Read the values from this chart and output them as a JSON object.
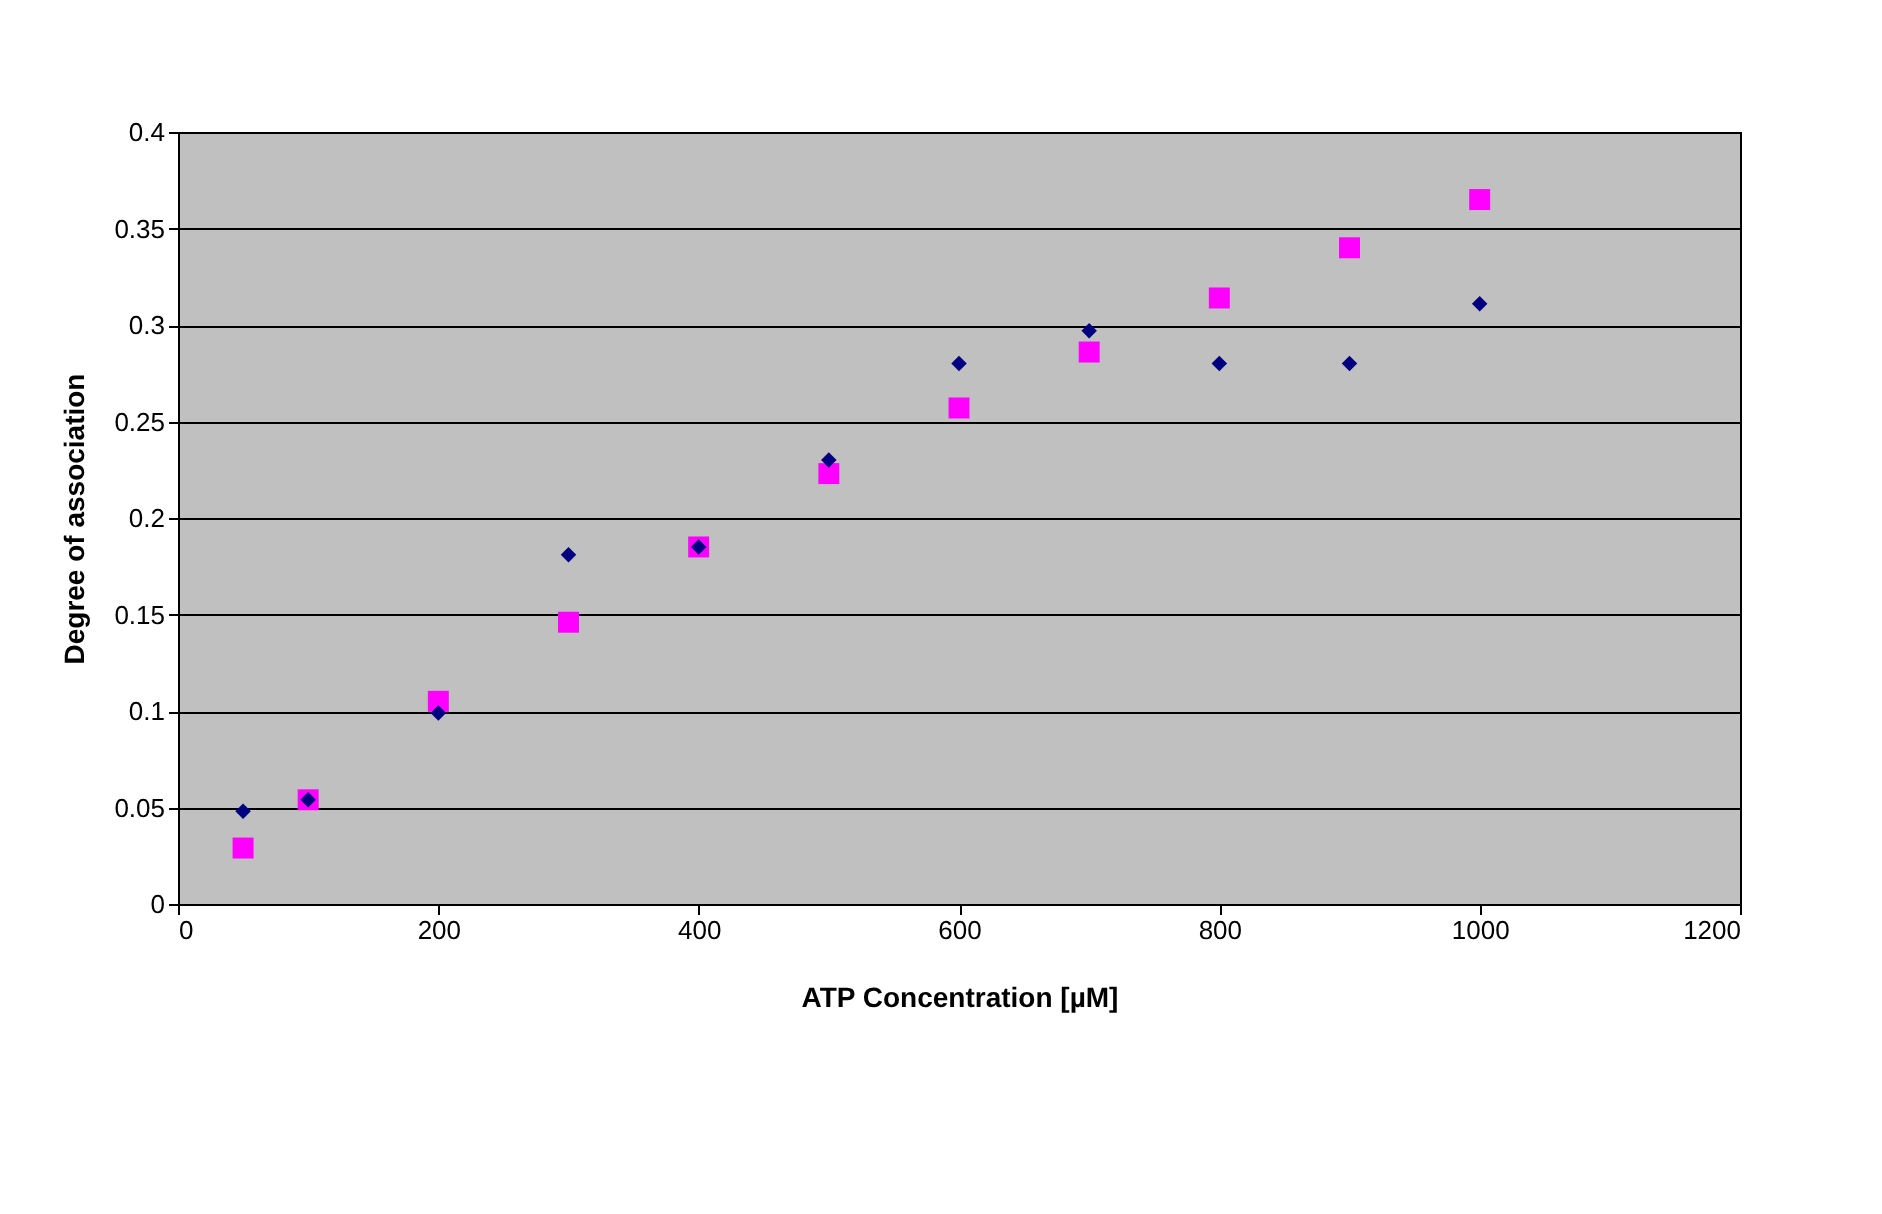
{
  "chart_data": {
    "type": "scatter",
    "xlabel": "ATP Concentration [µM]",
    "ylabel": "Degree of association",
    "xlim": [
      0,
      1200
    ],
    "xticks": [
      0,
      200,
      400,
      600,
      800,
      1000,
      1200
    ],
    "ylim": [
      0,
      0.4
    ],
    "yticks": [
      0,
      0.05,
      0.1,
      0.15,
      0.2,
      0.25,
      0.3,
      0.35,
      0.4
    ],
    "grid": "y",
    "legend": false,
    "series": [
      {
        "color": "#000080",
        "marker": "diamond",
        "x": [
          50,
          100,
          200,
          300,
          400,
          500,
          600,
          700,
          800,
          900,
          1000
        ],
        "values": [
          0.048,
          0.054,
          0.099,
          0.181,
          0.185,
          0.23,
          0.28,
          0.297,
          0.28,
          0.28,
          0.311
        ]
      },
      {
        "color": "#ff00ff",
        "marker": "square",
        "x": [
          50,
          100,
          200,
          300,
          400,
          500,
          600,
          700,
          800,
          900,
          1000
        ],
        "values": [
          0.029,
          0.054,
          0.105,
          0.146,
          0.185,
          0.223,
          0.257,
          0.286,
          0.314,
          0.34,
          0.365
        ]
      }
    ]
  }
}
